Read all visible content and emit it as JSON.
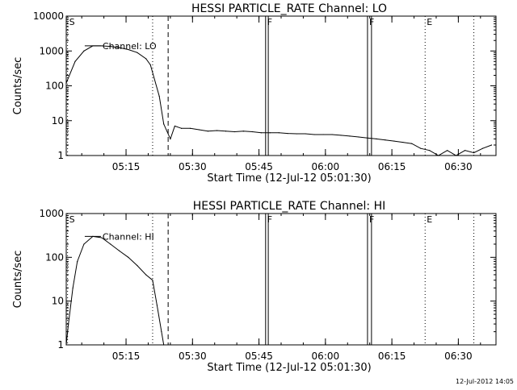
{
  "footer": {
    "timestamp": "12-Jul-2012 14:05"
  },
  "chart_data": [
    {
      "type": "line",
      "title": "HESSI PARTICLE_RATE Channel: LO",
      "xlabel": "Start Time (12-Jul-12 05:01:30)",
      "ylabel": "Counts/sec",
      "yscale": "log",
      "ylim": [
        1,
        10000
      ],
      "xlim": [
        0,
        97
      ],
      "x_unit": "minutes after 05:01:30",
      "x_ticks": [
        {
          "x": 13.5,
          "label": "05:15"
        },
        {
          "x": 28.5,
          "label": "05:30"
        },
        {
          "x": 43.5,
          "label": "05:45"
        },
        {
          "x": 58.5,
          "label": "06:00"
        },
        {
          "x": 73.5,
          "label": "06:15"
        },
        {
          "x": 88.5,
          "label": "06:30"
        }
      ],
      "y_ticks": [
        {
          "y": 1,
          "label": "1"
        },
        {
          "y": 10,
          "label": "10"
        },
        {
          "y": 100,
          "label": "100"
        },
        {
          "y": 1000,
          "label": "1000"
        },
        {
          "y": 10000,
          "label": "10000"
        }
      ],
      "series_label": "Channel: LO",
      "series": [
        {
          "name": "Channel: LO",
          "x": [
            0,
            2,
            4,
            6,
            8,
            10,
            12,
            14,
            16,
            18,
            19,
            21,
            22,
            23.5,
            24.5,
            26,
            28,
            30,
            32,
            34,
            36,
            38,
            40,
            42,
            44,
            46,
            48,
            50,
            52,
            54,
            56,
            58,
            60,
            62,
            64,
            66,
            68,
            70,
            72,
            74,
            76,
            78,
            80,
            82,
            84,
            86,
            88,
            90,
            92,
            94,
            96
          ],
          "y": [
            120,
            500,
            1000,
            1400,
            1400,
            1350,
            1250,
            1100,
            900,
            600,
            400,
            50,
            8,
            3,
            7,
            6,
            6,
            5.5,
            5,
            5.2,
            5,
            4.8,
            5,
            4.8,
            4.5,
            4.5,
            4.5,
            4.3,
            4.2,
            4.2,
            4,
            4,
            4,
            3.8,
            3.6,
            3.4,
            3.2,
            3,
            2.8,
            2.6,
            2.4,
            2.2,
            1.6,
            1.4,
            1,
            1.4,
            1,
            1.4,
            1.2,
            1.6,
            2
          ]
        }
      ],
      "markers": [
        {
          "label": "S",
          "x": 0.3,
          "style": "dotted"
        },
        {
          "label": "",
          "x": 19.5,
          "style": "dotted"
        },
        {
          "label": "",
          "x": 23,
          "style": "dashed"
        },
        {
          "label": "F",
          "x": 45,
          "x_end": 45.6,
          "style": "box"
        },
        {
          "label": "F",
          "x": 68,
          "x_end": 68.9,
          "style": "box"
        },
        {
          "label": "E",
          "x": 81,
          "style": "dotted"
        },
        {
          "label": "",
          "x": 92,
          "style": "dotted"
        }
      ]
    },
    {
      "type": "line",
      "title": "HESSI PARTICLE_RATE Channel: HI",
      "xlabel": "Start Time (12-Jul-12 05:01:30)",
      "ylabel": "Counts/sec",
      "yscale": "log",
      "ylim": [
        1,
        1000
      ],
      "xlim": [
        0,
        97
      ],
      "x_unit": "minutes after 05:01:30",
      "x_ticks": [
        {
          "x": 13.5,
          "label": "05:15"
        },
        {
          "x": 28.5,
          "label": "05:30"
        },
        {
          "x": 43.5,
          "label": "05:45"
        },
        {
          "x": 58.5,
          "label": "06:00"
        },
        {
          "x": 73.5,
          "label": "06:15"
        },
        {
          "x": 88.5,
          "label": "06:30"
        }
      ],
      "y_ticks": [
        {
          "y": 1,
          "label": "1"
        },
        {
          "y": 10,
          "label": "10"
        },
        {
          "y": 100,
          "label": "100"
        },
        {
          "y": 1000,
          "label": "1000"
        }
      ],
      "series_label": "Channel: HI",
      "series": [
        {
          "name": "Channel: HI",
          "x": [
            0,
            0.5,
            1.5,
            2.5,
            4,
            6,
            8,
            10,
            12,
            14,
            16,
            18,
            19.5,
            20.5,
            21.5,
            22
          ],
          "y": [
            1,
            3,
            20,
            80,
            200,
            300,
            280,
            200,
            140,
            100,
            65,
            40,
            30,
            8,
            2,
            1
          ]
        }
      ],
      "markers": [
        {
          "label": "S",
          "x": 0.3,
          "style": "dotted"
        },
        {
          "label": "",
          "x": 19.5,
          "style": "dotted"
        },
        {
          "label": "",
          "x": 23,
          "style": "dashed"
        },
        {
          "label": "F",
          "x": 45,
          "x_end": 45.6,
          "style": "box"
        },
        {
          "label": "F",
          "x": 68,
          "x_end": 68.9,
          "style": "box"
        },
        {
          "label": "E",
          "x": 81,
          "style": "dotted"
        },
        {
          "label": "",
          "x": 92,
          "style": "dotted"
        }
      ]
    }
  ]
}
